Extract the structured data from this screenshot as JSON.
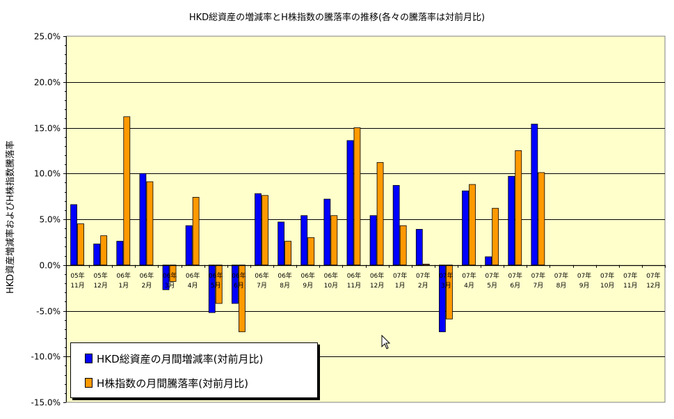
{
  "chart_data": {
    "type": "bar",
    "title": "HKD総資産の増減率とH株指数の騰落率の推移(各々の騰落率は対前月比)",
    "ylabel": "HKD資産増減率およびH株指数騰落率",
    "xlabel": "",
    "ylim": [
      -15,
      25
    ],
    "y_ticks": [
      25,
      20,
      15,
      10,
      5,
      0,
      -5,
      -10,
      -15
    ],
    "y_tick_labels": [
      "25.0%",
      "20.0%",
      "15.0%",
      "10.0%",
      "5.0%",
      "0.0%",
      "-5.0%",
      "-10.0%",
      "-15.0%"
    ],
    "categories_top": [
      "05年",
      "05年",
      "06年",
      "06年",
      "06年",
      "06年",
      "06年",
      "06年",
      "06年",
      "06年",
      "06年",
      "06年",
      "06年",
      "06年",
      "07年",
      "07年",
      "07年",
      "07年",
      "07年",
      "07年",
      "07年",
      "07年",
      "07年",
      "07年",
      "07年",
      "07年"
    ],
    "categories_bottom": [
      "11月",
      "12月",
      "1月",
      "2月",
      "3月",
      "4月",
      "5月",
      "6月",
      "7月",
      "8月",
      "9月",
      "10月",
      "11月",
      "12月",
      "1月",
      "2月",
      "3月",
      "4月",
      "5月",
      "6月",
      "7月",
      "8月",
      "9月",
      "10月",
      "11月",
      "12月"
    ],
    "series": [
      {
        "name": "HKD総資産の月間増減率(対前月比)",
        "color": "#0000ff",
        "values": [
          6.6,
          2.3,
          2.6,
          10.0,
          -2.7,
          4.3,
          -5.2,
          -4.2,
          7.8,
          4.7,
          5.4,
          7.2,
          13.6,
          5.4,
          8.7,
          3.9,
          -7.3,
          8.1,
          0.9,
          9.7,
          15.4,
          null,
          null,
          null,
          null,
          null
        ]
      },
      {
        "name": "H株指数の月間騰落率(対前月比)",
        "color": "#ff9900",
        "values": [
          4.5,
          3.2,
          16.2,
          9.1,
          -1.8,
          7.4,
          -4.2,
          -7.3,
          7.6,
          2.6,
          3.0,
          5.4,
          15.0,
          11.2,
          4.3,
          0.1,
          -5.9,
          8.8,
          6.2,
          12.5,
          10.1,
          null,
          null,
          null,
          null,
          null
        ]
      }
    ],
    "grid": true,
    "plot_background": "#ffffcc",
    "legend_position": "bottom-left"
  }
}
